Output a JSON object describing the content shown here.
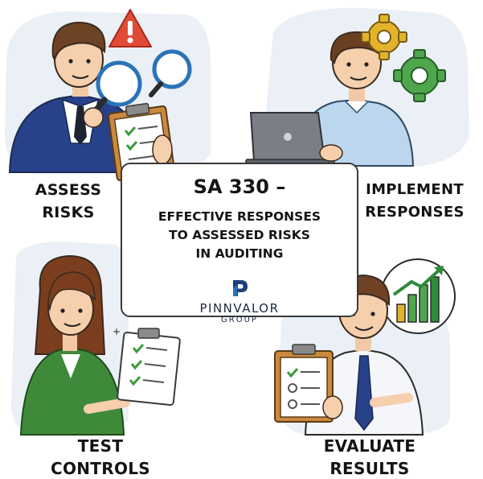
{
  "title": {
    "main": "SA 330 –",
    "lines": [
      "EFFECTIVE RESPONSES",
      "TO ASSESSED RISKS",
      "IN AUDITING"
    ]
  },
  "brand": {
    "name": "PINNVALOR",
    "sub": "GROUP"
  },
  "steps": {
    "assess": [
      "ASSESS",
      "RISKS"
    ],
    "implement": [
      "IMPLEMENT",
      "RESPONSES"
    ],
    "test": [
      "TEST",
      "CONTROLS"
    ],
    "evaluate": [
      "EVALUATE",
      "RESULTS"
    ]
  },
  "icons": {
    "warning": "warning-icon",
    "gears": "gear-icon",
    "chart": "growth-chart-icon",
    "checklist": "clipboard-checklist-icon"
  },
  "colors": {
    "navy": "#27428a",
    "sky_shirt": "#bcd6ee",
    "green_jacket": "#3f8a3a",
    "gear_gold": "#e3b32b",
    "gear_green": "#4ea64d",
    "warning_red": "#e14b35",
    "bubble": "#eaf0f5"
  }
}
